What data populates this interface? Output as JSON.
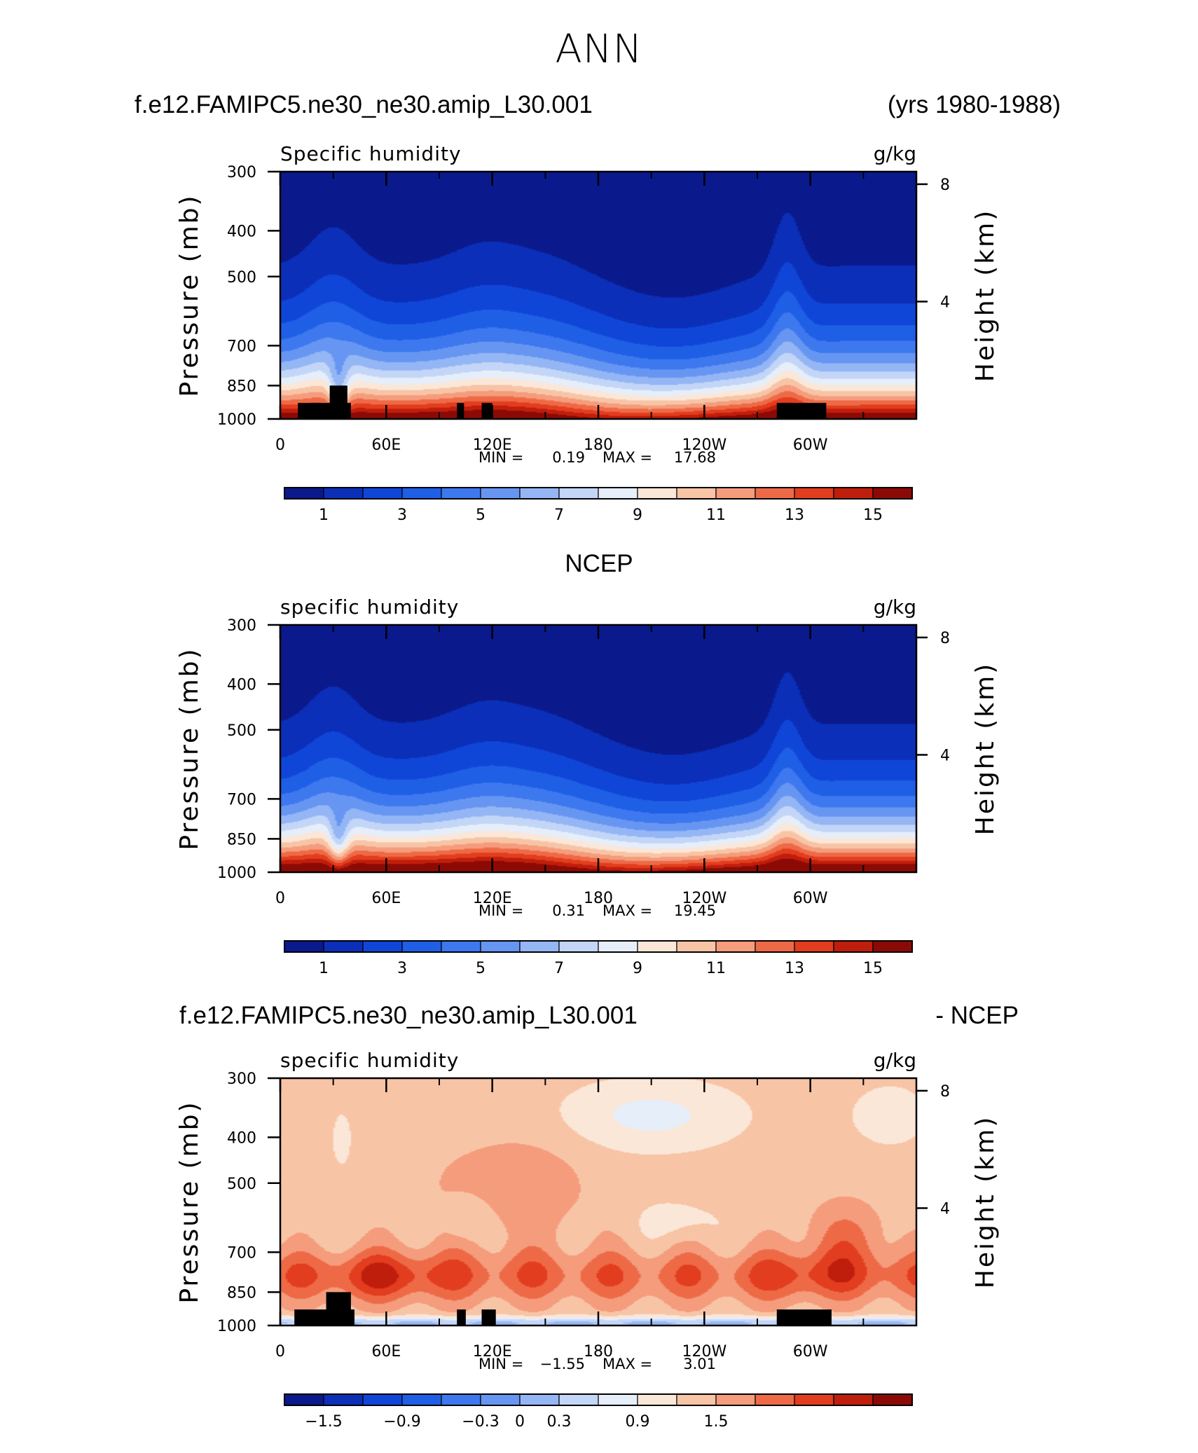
{
  "page_title": "ANN",
  "chart_data": [
    {
      "type": "heatmap",
      "case_label": "f.e12.FAMIPC5.ne30_ne30.amip_L30.001",
      "years_label": "(yrs 1980-1988)",
      "title": "",
      "variable_label": "Specific humidity",
      "units_label": "g/kg",
      "ylabel": "Pressure (mb)",
      "ylabel_right": "Height (km)",
      "xlabel": "",
      "x_ticks": [
        {
          "lon": 0,
          "label": "0"
        },
        {
          "lon": 60,
          "label": "60E"
        },
        {
          "lon": 120,
          "label": "120E"
        },
        {
          "lon": 180,
          "label": "180"
        },
        {
          "lon": 240,
          "label": "120W"
        },
        {
          "lon": 300,
          "label": "60W"
        }
      ],
      "y_ticks": [
        300,
        400,
        500,
        700,
        850,
        1000
      ],
      "height_ticks": [
        {
          "km": 8,
          "label": "8"
        },
        {
          "km": 4,
          "label": "4"
        }
      ],
      "xlim": [
        0,
        360
      ],
      "ylim": [
        1000,
        300
      ],
      "min_label": "MIN =",
      "min_value": "0.19",
      "max_label": "MAX =",
      "max_value": "17.68",
      "colorbar": {
        "colors": [
          "#0a1a8c",
          "#0b2fb8",
          "#1046d8",
          "#1f5fe6",
          "#3d78ef",
          "#6796f2",
          "#95b6f5",
          "#c3d6f8",
          "#e6eefa",
          "#fbe7d8",
          "#f8c4a6",
          "#f49c7c",
          "#ee6a47",
          "#e23d1e",
          "#c01e0c",
          "#8c0a05"
        ],
        "labels": [
          "1",
          "3",
          "5",
          "7",
          "9",
          "11",
          "13",
          "15"
        ],
        "label_positions": [
          1,
          3,
          5,
          7,
          9,
          11,
          13,
          15
        ]
      },
      "field": {
        "kind": "q",
        "bottom": 16.8,
        "scale_height_frac": 0.22
      },
      "topography": [
        {
          "lon1": 10,
          "lon2": 40,
          "p_top": 925
        },
        {
          "lon1": 28,
          "lon2": 38,
          "p_top": 850
        },
        {
          "lon1": 100,
          "lon2": 104,
          "p_top": 925
        },
        {
          "lon1": 114,
          "lon2": 120,
          "p_top": 925
        },
        {
          "lon1": 281,
          "lon2": 309,
          "p_top": 925
        }
      ]
    },
    {
      "type": "heatmap",
      "title": "NCEP",
      "variable_label": "specific humidity",
      "units_label": "g/kg",
      "ylabel": "Pressure (mb)",
      "ylabel_right": "Height (km)",
      "xlabel": "",
      "x_ticks": [
        {
          "lon": 0,
          "label": "0"
        },
        {
          "lon": 60,
          "label": "60E"
        },
        {
          "lon": 120,
          "label": "120E"
        },
        {
          "lon": 180,
          "label": "180"
        },
        {
          "lon": 240,
          "label": "120W"
        },
        {
          "lon": 300,
          "label": "60W"
        }
      ],
      "y_ticks": [
        300,
        400,
        500,
        700,
        850,
        1000
      ],
      "height_ticks": [
        {
          "km": 8,
          "label": "8"
        },
        {
          "km": 4,
          "label": "4"
        }
      ],
      "xlim": [
        0,
        360
      ],
      "ylim": [
        1000,
        300
      ],
      "min_label": "MIN =",
      "min_value": "0.31",
      "max_label": "MAX =",
      "max_value": "19.45",
      "colorbar": {
        "colors": [
          "#0a1a8c",
          "#0b2fb8",
          "#1046d8",
          "#1f5fe6",
          "#3d78ef",
          "#6796f2",
          "#95b6f5",
          "#c3d6f8",
          "#e6eefa",
          "#fbe7d8",
          "#f8c4a6",
          "#f49c7c",
          "#ee6a47",
          "#e23d1e",
          "#c01e0c",
          "#8c0a05"
        ],
        "labels": [
          "1",
          "3",
          "5",
          "7",
          "9",
          "11",
          "13",
          "15"
        ],
        "label_positions": [
          1,
          3,
          5,
          7,
          9,
          11,
          13,
          15
        ]
      },
      "field": {
        "kind": "q",
        "bottom": 17.5,
        "scale_height_frac": 0.21
      },
      "topography": []
    },
    {
      "type": "heatmap",
      "case_label": "f.e12.FAMIPC5.ne30_ne30.amip_L30.001",
      "suffix_label": "- NCEP",
      "title": "",
      "variable_label": "specific humidity",
      "units_label": "g/kg",
      "ylabel": "Pressure (mb)",
      "ylabel_right": "Height (km)",
      "xlabel": "",
      "x_ticks": [
        {
          "lon": 0,
          "label": "0"
        },
        {
          "lon": 60,
          "label": "60E"
        },
        {
          "lon": 120,
          "label": "120E"
        },
        {
          "lon": 180,
          "label": "180"
        },
        {
          "lon": 240,
          "label": "120W"
        },
        {
          "lon": 300,
          "label": "60W"
        }
      ],
      "y_ticks": [
        300,
        400,
        500,
        700,
        850,
        1000
      ],
      "height_ticks": [
        {
          "km": 8,
          "label": "8"
        },
        {
          "km": 4,
          "label": "4"
        }
      ],
      "xlim": [
        0,
        360
      ],
      "ylim": [
        1000,
        300
      ],
      "min_label": "MIN =",
      "min_value": "−1.55",
      "max_label": "MAX =",
      "max_value": "3.01",
      "colorbar": {
        "colors": [
          "#0a1a8c",
          "#0b2fb8",
          "#1046d8",
          "#1f5fe6",
          "#3d78ef",
          "#6796f2",
          "#95b6f5",
          "#c3d6f8",
          "#e6eefa",
          "#fbe7d8",
          "#f8c4a6",
          "#f49c7c",
          "#ee6a47",
          "#e23d1e",
          "#c01e0c",
          "#8c0a05"
        ],
        "labels": [
          "−1.5",
          "−0.9",
          "−0.3",
          "0",
          "0.3",
          "0.9",
          "1.5"
        ],
        "label_positions": [
          1,
          3,
          5,
          6,
          7,
          9,
          11
        ]
      },
      "field": {
        "kind": "diff"
      },
      "topography": [
        {
          "lon1": 8,
          "lon2": 42,
          "p_top": 925
        },
        {
          "lon1": 26,
          "lon2": 40,
          "p_top": 850
        },
        {
          "lon1": 100,
          "lon2": 105,
          "p_top": 925
        },
        {
          "lon1": 114,
          "lon2": 122,
          "p_top": 925
        },
        {
          "lon1": 281,
          "lon2": 312,
          "p_top": 925
        }
      ]
    }
  ]
}
